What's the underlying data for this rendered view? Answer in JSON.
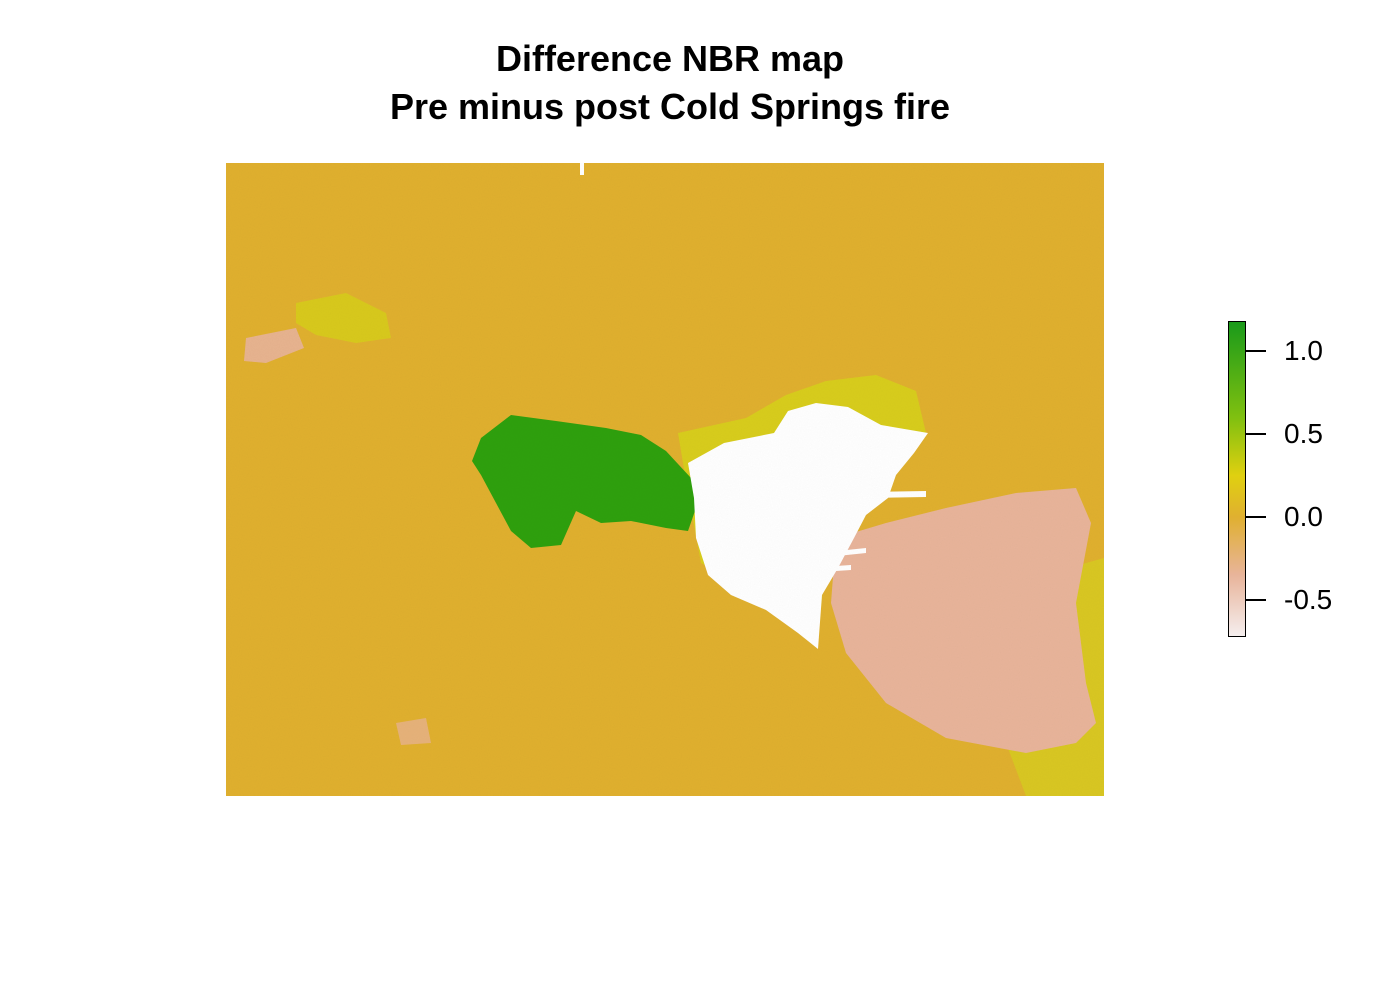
{
  "header": {
    "title": "Difference NBR map",
    "subtitle": "Pre minus post Cold Springs fire"
  },
  "chart_data": {
    "type": "heatmap",
    "title": "Difference NBR map",
    "subtitle": "Pre minus post Cold Springs fire",
    "legend": {
      "placement": "right",
      "range": [
        -0.72,
        1.18
      ],
      "ticks": [
        1.0,
        0.5,
        0.0,
        -0.5
      ],
      "tick_labels": [
        "1.0",
        "0.5",
        "0.0",
        "-0.5"
      ],
      "color_stops": [
        {
          "value": -0.72,
          "color": "#f5eeee"
        },
        {
          "value": -0.35,
          "color": "#e8b49a"
        },
        {
          "value": 0.0,
          "color": "#e0b030"
        },
        {
          "value": 0.25,
          "color": "#e0d010"
        },
        {
          "value": 0.6,
          "color": "#80c010"
        },
        {
          "value": 1.18,
          "color": "#1a9a1a"
        }
      ]
    },
    "regions": [
      {
        "name": "background",
        "value": 0.0,
        "color": "#e0b030"
      },
      {
        "name": "high positive patch",
        "value": 0.9,
        "color": "#2ea010"
      },
      {
        "name": "no data area",
        "value": null,
        "color": "#ffffff"
      },
      {
        "name": "negative area",
        "value": -0.35,
        "color": "#e8b49a"
      },
      {
        "name": "slightly positive fringe",
        "value": 0.25,
        "color": "#d6d21a"
      }
    ]
  },
  "colors": {
    "background": "#e0b030",
    "green": "#2ea010",
    "nodata": "#ffffff",
    "pink": "#e8b49a",
    "yellow": "#d6d21a"
  }
}
